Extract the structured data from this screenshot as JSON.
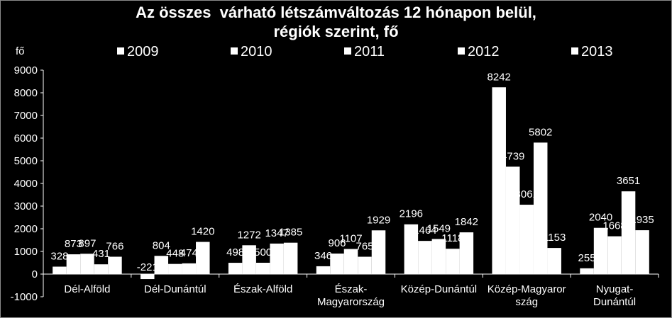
{
  "chart_data": {
    "type": "bar",
    "title_lines": [
      "Az összes  várható létszámváltozás 12 hónapon belül,",
      "régiók szerint, fő"
    ],
    "ylabel": "fő",
    "ylim": [
      -1000,
      9000
    ],
    "yticks": [
      -1000,
      0,
      1000,
      2000,
      3000,
      4000,
      5000,
      6000,
      7000,
      8000,
      9000
    ],
    "grid": false,
    "legend_position": "top",
    "bar_color": "#ffffff",
    "categories": [
      [
        "Dél-Alföld"
      ],
      [
        "Dél-Dunántúl"
      ],
      [
        "Észak-Alföld"
      ],
      [
        "Észak-",
        "Magyarország"
      ],
      [
        "Közép-Dunántúl"
      ],
      [
        "Közép-Magyaror",
        "szág"
      ],
      [
        "Nyugat-",
        "Dunántúl"
      ]
    ],
    "series": [
      {
        "name": "2009",
        "values": [
          328,
          -221,
          498,
          346,
          2196,
          8242,
          255
        ]
      },
      {
        "name": "2010",
        "values": [
          873,
          804,
          1272,
          906,
          1464,
          4739,
          2040
        ]
      },
      {
        "name": "2011",
        "values": [
          897,
          448,
          500,
          1107,
          1549,
          3061,
          1668
        ]
      },
      {
        "name": "2012",
        "values": [
          431,
          474,
          1347,
          765,
          1118,
          5802,
          3651
        ]
      },
      {
        "name": "2013",
        "values": [
          766,
          1420,
          1385,
          1929,
          1842,
          1153,
          1935
        ]
      }
    ]
  }
}
